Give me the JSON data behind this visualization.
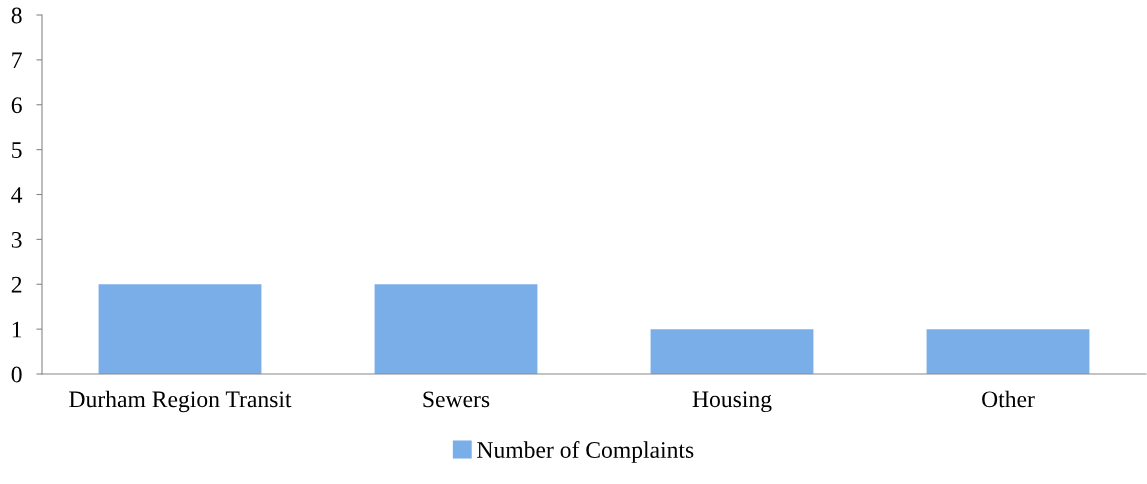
{
  "chart_data": {
    "type": "bar",
    "categories": [
      "Durham Region Transit",
      "Sewers",
      "Housing",
      "Other"
    ],
    "series": [
      {
        "name": "Number of Complaints",
        "color": "#7aaee8",
        "values": [
          2,
          2,
          1,
          1
        ]
      }
    ],
    "ylim": [
      0,
      8
    ],
    "yticks": [
      0,
      1,
      2,
      3,
      4,
      5,
      6,
      7,
      8
    ],
    "grid": false,
    "legend": "bottom"
  }
}
